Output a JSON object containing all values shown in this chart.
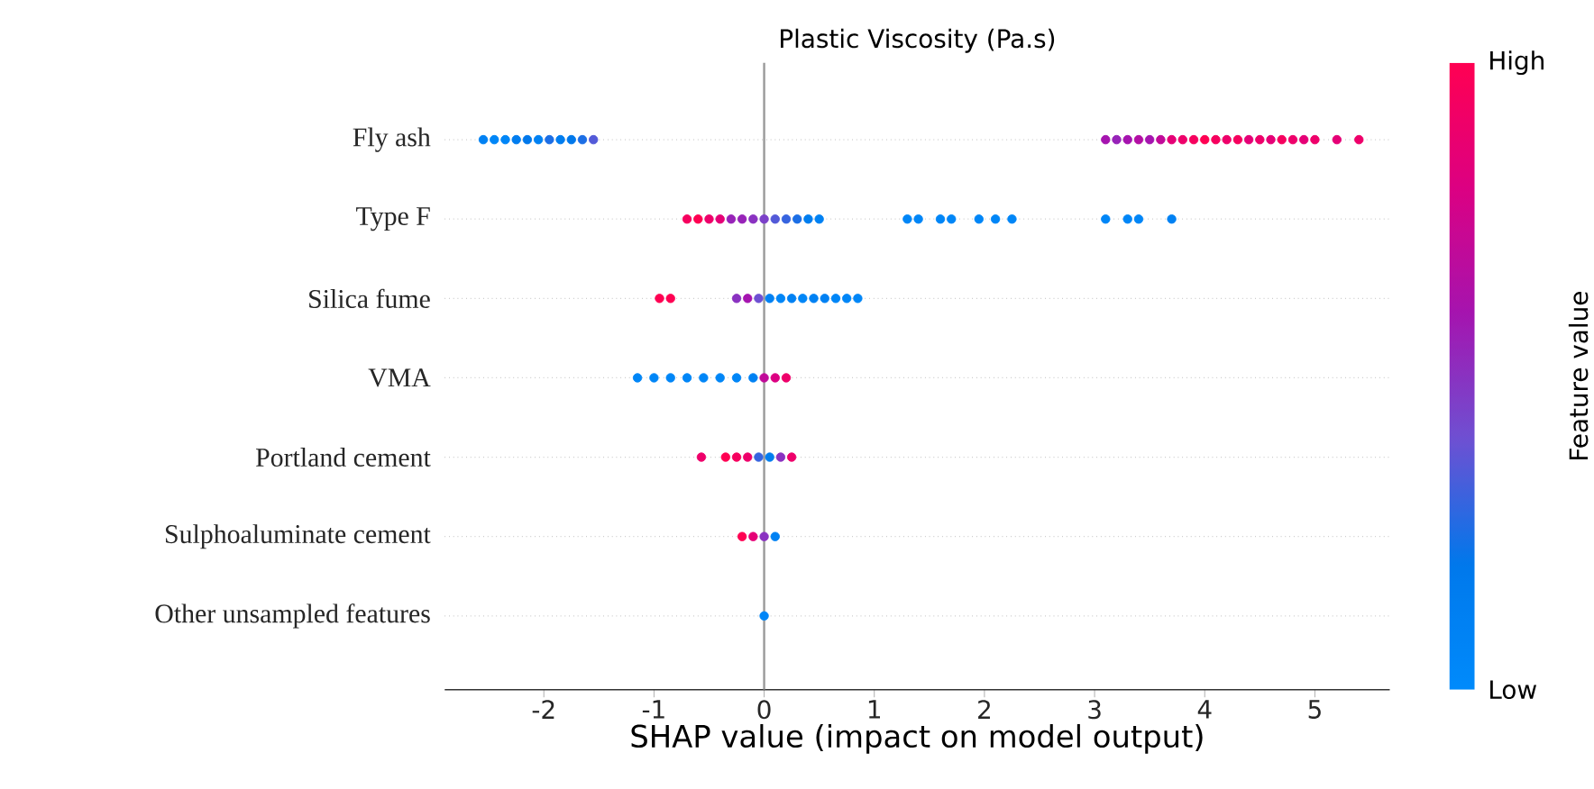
{
  "chart_data": {
    "type": "scatter",
    "title": "Plastic Viscosity (Pa.s)",
    "xlabel": "SHAP value (impact on model output)",
    "clabel": "Feature value",
    "orientation": "horizontal",
    "categories": [
      "Fly ash",
      "Type F",
      "Silica fume",
      "VMA",
      "Portland cement",
      "Sulphoaluminate cement",
      "Other unsampled  features"
    ],
    "xlim": [
      -2.9,
      5.68
    ],
    "xticks": [
      -2,
      -1,
      0,
      1,
      2,
      3,
      4,
      5
    ],
    "clim": [
      0,
      1
    ],
    "cticks": [
      {
        "value": 0,
        "label": "Low"
      },
      {
        "value": 1,
        "label": "High"
      }
    ],
    "grid": "y",
    "marker": "circle",
    "ref_lines": [
      {
        "axis": "x",
        "value": 0,
        "color": "#999999"
      }
    ],
    "series": [
      {
        "x": [
          "Fly ash",
          "Fly ash",
          "Fly ash",
          "Fly ash",
          "Fly ash",
          "Fly ash",
          "Fly ash",
          "Fly ash",
          "Fly ash",
          "Fly ash",
          "Fly ash",
          "Fly ash",
          "Fly ash",
          "Fly ash",
          "Fly ash",
          "Fly ash",
          "Fly ash",
          "Fly ash",
          "Fly ash",
          "Fly ash",
          "Fly ash",
          "Fly ash",
          "Fly ash",
          "Fly ash",
          "Fly ash",
          "Fly ash",
          "Fly ash",
          "Fly ash",
          "Fly ash",
          "Fly ash",
          "Fly ash",
          "Fly ash",
          "Fly ash"
        ],
        "values": [
          -2.55,
          -2.45,
          -2.35,
          -2.25,
          -2.15,
          -2.05,
          -1.95,
          -1.85,
          -1.75,
          -1.65,
          -1.55,
          3.1,
          3.2,
          3.3,
          3.4,
          3.5,
          3.6,
          3.7,
          3.8,
          3.9,
          4.0,
          4.1,
          4.2,
          4.3,
          4.4,
          4.5,
          4.6,
          4.7,
          4.8,
          4.9,
          5.0,
          5.2,
          5.4
        ],
        "cvalues": [
          0.1,
          0.05,
          0.05,
          0.15,
          0.2,
          0.1,
          0.25,
          0.15,
          0.2,
          0.25,
          0.35,
          0.6,
          0.55,
          0.6,
          0.65,
          0.6,
          0.7,
          0.85,
          0.9,
          0.95,
          1.0,
          0.95,
          0.9,
          0.95,
          0.85,
          0.9,
          0.85,
          0.95,
          0.9,
          0.85,
          0.9,
          0.85,
          0.9
        ],
        "colors": [
          "#0081f3",
          "#0086f7",
          "#0086f7",
          "#007def",
          "#0078eb",
          "#0081f3",
          "#1c6ee5",
          "#007def",
          "#0078eb",
          "#1c6ee5",
          "#535ad8",
          "#a514af",
          "#9723b8",
          "#a514af",
          "#b30fa4",
          "#a514af",
          "#c10a99",
          "#e50076",
          "#ee006a",
          "#f6005e",
          "#ff0052",
          "#f6005e",
          "#ee006a",
          "#f6005e",
          "#e50076",
          "#ee006a",
          "#e50076",
          "#f6005e",
          "#ee006a",
          "#e50076",
          "#ee006a",
          "#e50076",
          "#ee006a"
        ]
      },
      {
        "x": [
          "Type F",
          "Type F",
          "Type F",
          "Type F",
          "Type F",
          "Type F",
          "Type F",
          "Type F",
          "Type F",
          "Type F",
          "Type F",
          "Type F",
          "Type F",
          "Type F",
          "Type F",
          "Type F",
          "Type F",
          "Type F",
          "Type F",
          "Type F",
          "Type F",
          "Type F",
          "Type F",
          "Type F"
        ],
        "values": [
          -0.7,
          -0.6,
          -0.5,
          -0.4,
          -0.3,
          -0.2,
          -0.1,
          0.0,
          0.1,
          0.2,
          0.3,
          0.4,
          0.5,
          1.3,
          1.4,
          1.6,
          1.7,
          1.95,
          2.1,
          2.25,
          3.1,
          3.3,
          3.4,
          3.7
        ],
        "cvalues": [
          0.95,
          1.0,
          0.9,
          0.85,
          0.55,
          0.55,
          0.5,
          0.45,
          0.35,
          0.3,
          0.25,
          0.15,
          0.1,
          0.05,
          0.05,
          0.05,
          0.05,
          0.05,
          0.05,
          0.05,
          0.05,
          0.05,
          0.05,
          0.1
        ],
        "colors": [
          "#f6005e",
          "#ff0052",
          "#ee006a",
          "#e50076",
          "#9723b8",
          "#9723b8",
          "#8a32c1",
          "#7c41c9",
          "#535ad8",
          "#3764df",
          "#1c6ee5",
          "#007def",
          "#0081f3",
          "#0086f7",
          "#0086f7",
          "#0086f7",
          "#0086f7",
          "#0086f7",
          "#0086f7",
          "#0086f7",
          "#0086f7",
          "#0086f7",
          "#0086f7",
          "#0081f3"
        ]
      },
      {
        "x": [
          "Silica fume",
          "Silica fume",
          "Silica fume",
          "Silica fume",
          "Silica fume",
          "Silica fume",
          "Silica fume",
          "Silica fume",
          "Silica fume",
          "Silica fume",
          "Silica fume",
          "Silica fume",
          "Silica fume",
          "Silica fume"
        ],
        "values": [
          -0.95,
          -0.85,
          -0.25,
          -0.15,
          -0.05,
          0.05,
          0.15,
          0.25,
          0.35,
          0.45,
          0.55,
          0.65,
          0.75,
          0.85
        ],
        "cvalues": [
          1.0,
          1.0,
          0.5,
          0.6,
          0.4,
          0.1,
          0.05,
          0.1,
          0.05,
          0.1,
          0.1,
          0.05,
          0.05,
          0.05
        ],
        "colors": [
          "#ff0052",
          "#ff0052",
          "#8a32c1",
          "#a514af",
          "#6e50d2",
          "#0081f3",
          "#0086f7",
          "#0081f3",
          "#0086f7",
          "#0081f3",
          "#0081f3",
          "#0086f7",
          "#0086f7",
          "#0086f7"
        ]
      },
      {
        "x": [
          "VMA",
          "VMA",
          "VMA",
          "VMA",
          "VMA",
          "VMA",
          "VMA",
          "VMA",
          "VMA",
          "VMA",
          "VMA"
        ],
        "values": [
          -1.15,
          -1.0,
          -0.85,
          -0.7,
          -0.55,
          -0.4,
          -0.25,
          -0.1,
          0.0,
          0.1,
          0.2
        ],
        "cvalues": [
          0.05,
          0.05,
          0.05,
          0.05,
          0.05,
          0.05,
          0.05,
          0.1,
          0.7,
          0.8,
          0.9
        ],
        "colors": [
          "#0086f7",
          "#0086f7",
          "#0086f7",
          "#0086f7",
          "#0086f7",
          "#0086f7",
          "#0086f7",
          "#0081f3",
          "#c10a99",
          "#dc0082",
          "#ee006a"
        ]
      },
      {
        "x": [
          "Portland cement",
          "Portland cement",
          "Portland cement",
          "Portland cement",
          "Portland cement",
          "Portland cement",
          "Portland cement",
          "Portland cement"
        ],
        "values": [
          -0.57,
          -0.35,
          -0.25,
          -0.15,
          -0.05,
          0.05,
          0.15,
          0.25
        ],
        "cvalues": [
          0.9,
          1.0,
          0.95,
          0.9,
          0.3,
          0.15,
          0.5,
          0.9
        ],
        "colors": [
          "#ee006a",
          "#ff0052",
          "#f6005e",
          "#ee006a",
          "#3764df",
          "#007def",
          "#8a32c1",
          "#ee006a"
        ]
      },
      {
        "x": [
          "Sulphoaluminate cement",
          "Sulphoaluminate cement",
          "Sulphoaluminate cement",
          "Sulphoaluminate cement"
        ],
        "values": [
          -0.2,
          -0.1,
          0.0,
          0.1
        ],
        "cvalues": [
          1.0,
          0.85,
          0.5,
          0.1
        ],
        "colors": [
          "#ff0052",
          "#e50076",
          "#8a32c1",
          "#0081f3"
        ]
      },
      {
        "x": [
          "Other unsampled  features"
        ],
        "values": [
          0.0
        ],
        "cvalues": [
          0.05
        ],
        "colors": [
          "#0086f7"
        ]
      }
    ]
  }
}
